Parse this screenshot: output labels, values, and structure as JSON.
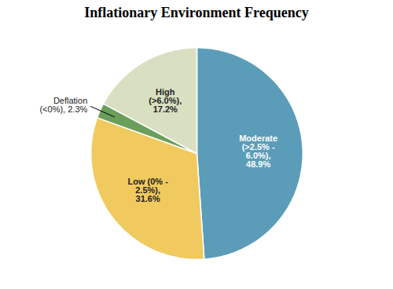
{
  "chart_data": {
    "type": "pie",
    "title": "Inflationary Environment Frequency",
    "categories": [
      "Moderate\n(>2.5% -\n6.0%),\n48.9%",
      "Low (0% -\n2.5%),\n31.6%",
      "Deflation\n(<0%), 2.3%",
      "High\n(>6.0%),\n17.2%"
    ],
    "values": [
      48.9,
      31.6,
      2.3,
      17.2
    ],
    "colors": [
      "#5b9db8",
      "#f0ca5e",
      "#6a9e5b",
      "#d9dfc1"
    ]
  }
}
